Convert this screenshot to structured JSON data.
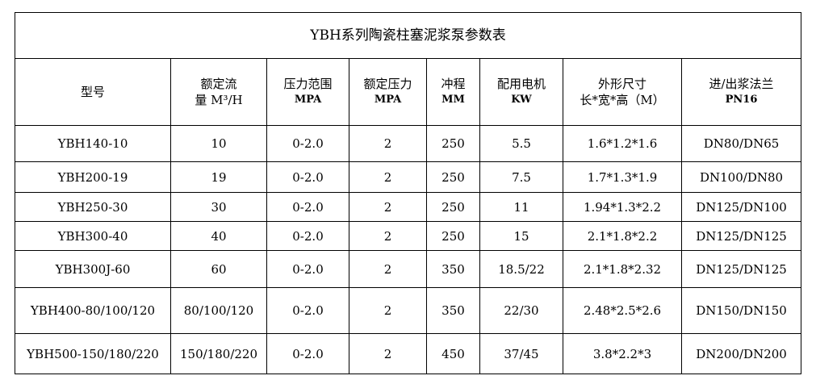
{
  "title": "YBH系列陶瓷柱塞泥浆泵参数表",
  "headers": [
    {
      "line1": "型号",
      "line2": ""
    },
    {
      "line1": "额定流",
      "line2": "量 M³/H"
    },
    {
      "line1": "压力范围",
      "line2": "MPA"
    },
    {
      "line1": "额定压力",
      "line2": "MPA"
    },
    {
      "line1": "冲程",
      "line2": "MM"
    },
    {
      "line1": "配用电机",
      "line2": "KW"
    },
    {
      "line1": "外形尺寸",
      "line2": "长*宽*高（M）"
    },
    {
      "line1": "进/出浆法兰",
      "line2": "PN16"
    }
  ],
  "rows": [
    [
      "YBH140-10",
      "10",
      "0-2.0",
      "2",
      "250",
      "5.5",
      "1.6*1.2*1.6",
      "DN80/DN65"
    ],
    [
      "YBH200-19",
      "19",
      "0-2.0",
      "2",
      "250",
      "7.5",
      "1.7*1.3*1.9",
      "DN100/DN80"
    ],
    [
      "YBH250-30",
      "30",
      "0-2.0",
      "2",
      "250",
      "11",
      "1.94*1.3*2.2",
      "DN125/DN100"
    ],
    [
      "YBH300-40",
      "40",
      "0-2.0",
      "2",
      "250",
      "15",
      "2.1*1.8*2.2",
      "DN125/DN125"
    ],
    [
      "YBH300J-60",
      "60",
      "0-2.0",
      "2",
      "350",
      "18.5/22",
      "2.1*1.8*2.32",
      "DN125/DN125"
    ],
    [
      "YBH400-80/100/120",
      "80/100/120",
      "0-2.0",
      "2",
      "350",
      "22/30",
      "2.48*2.5*2.6",
      "DN150/DN150"
    ],
    [
      "YBH500-150/180/220",
      "150/180/220",
      "0-2.0",
      "2",
      "450",
      "37/45",
      "3.8*2.2*3",
      "DN200/DN200"
    ]
  ]
}
